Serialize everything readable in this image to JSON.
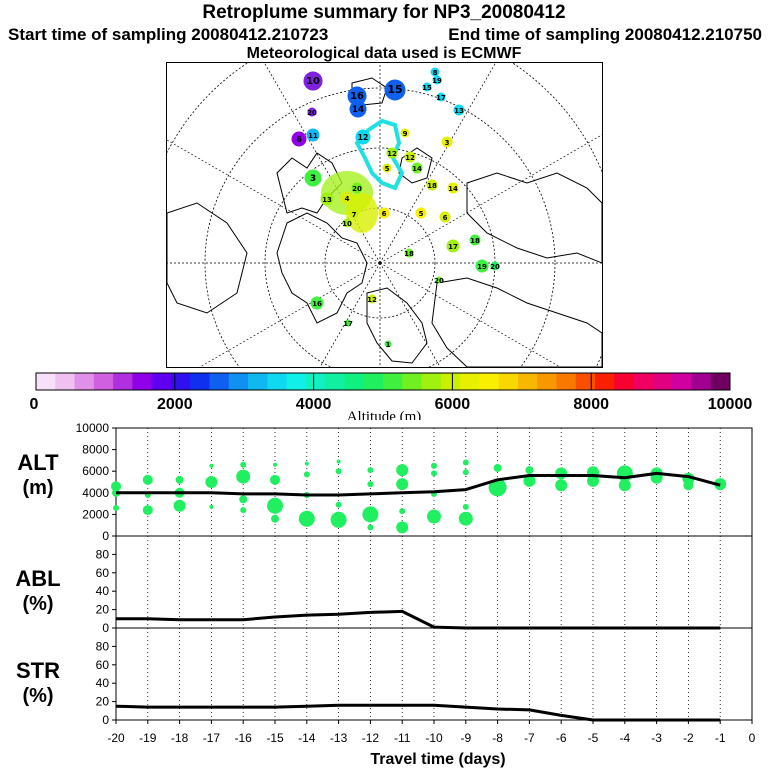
{
  "header": {
    "title": "Retroplume summary for NP3_20080412",
    "start_label": "Start time of sampling 20080412.210723",
    "end_label": "End time of sampling 20080412.210750",
    "met_label": "Meteorological data used is ECMWF"
  },
  "colorbar": {
    "ticks": [
      "0",
      "2000",
      "4000",
      "6000",
      "8000",
      "10000"
    ],
    "label": "Altitude (m)",
    "colors": [
      "#f8e0f8",
      "#f0c0f0",
      "#e090e8",
      "#d060e0",
      "#b030e0",
      "#9000e8",
      "#6000f0",
      "#3010f0",
      "#1030f0",
      "#1060f0",
      "#1090f0",
      "#10b8f0",
      "#10d8f0",
      "#10f0e8",
      "#10f0c0",
      "#10f0a0",
      "#10f080",
      "#20f060",
      "#40f040",
      "#70f020",
      "#a0f010",
      "#c8f000",
      "#e8f000",
      "#f8f000",
      "#f8d800",
      "#f8b800",
      "#f89800",
      "#f87800",
      "#f85000",
      "#f82000",
      "#f80030",
      "#f00060",
      "#e00080",
      "#d000a0",
      "#a00090",
      "#700060"
    ]
  },
  "map": {
    "labels": [
      "10",
      "16",
      "15",
      "8",
      "19",
      "15",
      "17",
      "14",
      "13",
      "20",
      "6",
      "11",
      "12",
      "9",
      "3",
      "12",
      "5",
      "14",
      "12",
      "3",
      "18",
      "14",
      "13",
      "4",
      "20",
      "6",
      "10",
      "5",
      "6",
      "7",
      "17",
      "18",
      "19",
      "20",
      "16",
      "18",
      "12",
      "20",
      "17",
      "1"
    ]
  },
  "chart_data": [
    {
      "type": "line",
      "title": "ALT (m)",
      "name": "ALT",
      "unit": "(m)",
      "xlabel": "Travel time (days)",
      "ylabel": "ALT (m)",
      "x": [
        -20,
        -19,
        -18,
        -17,
        -16,
        -15,
        -14,
        -13,
        -12,
        -11,
        -10,
        -9,
        -8,
        -7,
        -6,
        -5,
        -4,
        -3,
        -2,
        -1
      ],
      "y": [
        4000,
        4000,
        4000,
        4000,
        3900,
        3900,
        3800,
        3800,
        3900,
        4000,
        4100,
        4300,
        5200,
        5600,
        5600,
        5600,
        5400,
        5800,
        5500,
        4700
      ],
      "xlim": [
        -20,
        0
      ],
      "ylim": [
        0,
        10000
      ],
      "yticks": [
        "0",
        "2000",
        "4000",
        "6000",
        "8000",
        "10000"
      ],
      "scatter_points": [
        [
          -20,
          4600
        ],
        [
          -20,
          4000
        ],
        [
          -20,
          2600
        ],
        [
          -19,
          5200
        ],
        [
          -19,
          3800
        ],
        [
          -19,
          2400
        ],
        [
          -18,
          5200
        ],
        [
          -18,
          4000
        ],
        [
          -18,
          2800
        ],
        [
          -17,
          6500
        ],
        [
          -17,
          5000
        ],
        [
          -17,
          2700
        ],
        [
          -16,
          6600
        ],
        [
          -16,
          5500
        ],
        [
          -16,
          3400
        ],
        [
          -16,
          2400
        ],
        [
          -15,
          6600
        ],
        [
          -15,
          5200
        ],
        [
          -15,
          2800
        ],
        [
          -15,
          1600
        ],
        [
          -14,
          6700
        ],
        [
          -14,
          5700
        ],
        [
          -14,
          3800
        ],
        [
          -14,
          1600
        ],
        [
          -13,
          6900
        ],
        [
          -13,
          6000
        ],
        [
          -13,
          2900
        ],
        [
          -13,
          1500
        ],
        [
          -12,
          6100
        ],
        [
          -12,
          4800
        ],
        [
          -12,
          2000
        ],
        [
          -12,
          800
        ],
        [
          -11,
          6100
        ],
        [
          -11,
          4800
        ],
        [
          -11,
          2300
        ],
        [
          -11,
          800
        ],
        [
          -10,
          6500
        ],
        [
          -10,
          5800
        ],
        [
          -10,
          3900
        ],
        [
          -10,
          1800
        ],
        [
          -9,
          6800
        ],
        [
          -9,
          5900
        ],
        [
          -9,
          2700
        ],
        [
          -9,
          1600
        ],
        [
          -8,
          6300
        ],
        [
          -8,
          4500
        ],
        [
          -7,
          6100
        ],
        [
          -7,
          5100
        ],
        [
          -6,
          5800
        ],
        [
          -6,
          4700
        ],
        [
          -5,
          5900
        ],
        [
          -5,
          5100
        ],
        [
          -4,
          5800
        ],
        [
          -4,
          4700
        ],
        [
          -3,
          5800
        ],
        [
          -3,
          5400
        ],
        [
          -2,
          5300
        ],
        [
          -2,
          4700
        ],
        [
          -1,
          4800
        ]
      ],
      "point_sizes": [
        5,
        4,
        3,
        5,
        3,
        5,
        4,
        5,
        6,
        2,
        6,
        2,
        3,
        7,
        4,
        3,
        2,
        5,
        8,
        4,
        2,
        3,
        3,
        8,
        2,
        3,
        3,
        8,
        3,
        3,
        8,
        3,
        6,
        6,
        3,
        6,
        3,
        3,
        3,
        7,
        3,
        3,
        3,
        7,
        4,
        9,
        4,
        6,
        6,
        6,
        6,
        6,
        8,
        6,
        6,
        6,
        6,
        5,
        6
      ],
      "xticks": [
        "-20",
        "-19",
        "-18",
        "-17",
        "-16",
        "-15",
        "-14",
        "-13",
        "-12",
        "-11",
        "-10",
        "-9",
        "-8",
        "-7",
        "-6",
        "-5",
        "-4",
        "-3",
        "-2",
        "-1",
        "0"
      ]
    },
    {
      "type": "line",
      "title": "ABL (%)",
      "name": "ABL",
      "unit": "(%)",
      "x": [
        -20,
        -19,
        -18,
        -17,
        -16,
        -15,
        -14,
        -13,
        -12,
        -11,
        -10,
        -9,
        -8,
        -7,
        -6,
        -5,
        -4,
        -3,
        -2,
        -1
      ],
      "y": [
        10,
        10,
        9,
        9,
        9,
        12,
        14,
        15,
        17,
        18,
        1,
        0,
        0,
        0,
        0,
        0,
        0,
        0,
        0,
        0
      ],
      "xlim": [
        -20,
        0
      ],
      "ylim": [
        0,
        100
      ],
      "yticks": [
        "0",
        "20",
        "40",
        "60",
        "80"
      ]
    },
    {
      "type": "line",
      "title": "STR (%)",
      "name": "STR",
      "unit": "(%)",
      "x": [
        -20,
        -19,
        -18,
        -17,
        -16,
        -15,
        -14,
        -13,
        -12,
        -11,
        -10,
        -9,
        -8,
        -7,
        -6,
        -5,
        -4,
        -3,
        -2,
        -1
      ],
      "y": [
        15,
        14,
        14,
        14,
        14,
        14,
        15,
        16,
        16,
        16,
        16,
        14,
        12,
        11,
        5,
        0,
        0,
        0,
        0,
        0
      ],
      "xlim": [
        -20,
        0
      ],
      "ylim": [
        0,
        100
      ],
      "yticks": [
        "0",
        "20",
        "40",
        "60",
        "80"
      ]
    }
  ]
}
